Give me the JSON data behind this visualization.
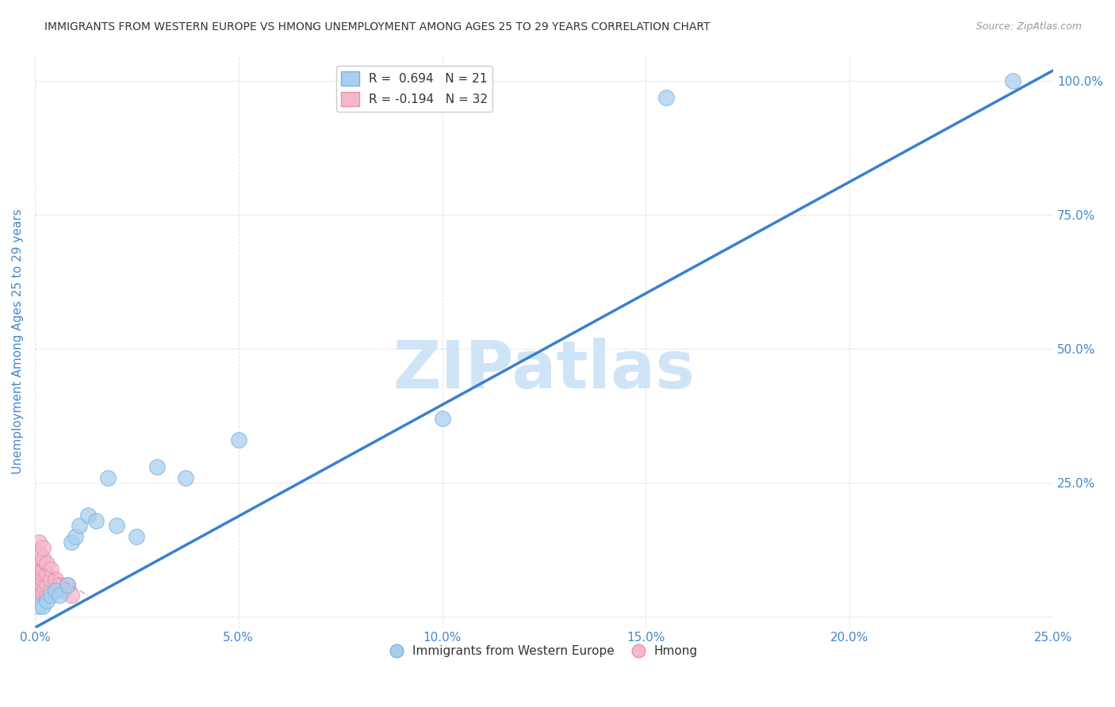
{
  "title": "IMMIGRANTS FROM WESTERN EUROPE VS HMONG UNEMPLOYMENT AMONG AGES 25 TO 29 YEARS CORRELATION CHART",
  "source": "Source: ZipAtlas.com",
  "ylabel": "Unemployment Among Ages 25 to 29 years",
  "legend_bottom": [
    "Immigrants from Western Europe",
    "Hmong"
  ],
  "blue_R": 0.694,
  "blue_N": 21,
  "pink_R": -0.194,
  "pink_N": 32,
  "xlim": [
    0.0,
    0.25
  ],
  "ylim": [
    -0.02,
    1.05
  ],
  "xticks": [
    0.0,
    0.05,
    0.1,
    0.15,
    0.2,
    0.25
  ],
  "yticks": [
    0.0,
    0.25,
    0.5,
    0.75,
    1.0
  ],
  "xticklabels": [
    "0.0%",
    "5.0%",
    "10.0%",
    "15.0%",
    "20.0%",
    "25.0%"
  ],
  "right_yticklabels": [
    "",
    "25.0%",
    "50.0%",
    "75.0%",
    "100.0%"
  ],
  "blue_scatter_x": [
    0.001,
    0.002,
    0.003,
    0.004,
    0.005,
    0.006,
    0.008,
    0.009,
    0.01,
    0.011,
    0.013,
    0.015,
    0.018,
    0.02,
    0.025,
    0.03,
    0.037,
    0.05,
    0.1,
    0.155,
    0.24
  ],
  "blue_scatter_y": [
    0.02,
    0.02,
    0.03,
    0.04,
    0.05,
    0.04,
    0.06,
    0.14,
    0.15,
    0.17,
    0.19,
    0.18,
    0.26,
    0.17,
    0.15,
    0.28,
    0.26,
    0.33,
    0.37,
    0.97,
    1.0
  ],
  "pink_scatter_x": [
    0.0,
    0.0,
    0.0,
    0.001,
    0.001,
    0.001,
    0.001,
    0.001,
    0.001,
    0.001,
    0.001,
    0.002,
    0.002,
    0.002,
    0.002,
    0.002,
    0.002,
    0.002,
    0.002,
    0.003,
    0.003,
    0.003,
    0.003,
    0.004,
    0.004,
    0.004,
    0.005,
    0.005,
    0.006,
    0.007,
    0.008,
    0.009
  ],
  "pink_scatter_y": [
    0.06,
    0.08,
    0.1,
    0.04,
    0.05,
    0.06,
    0.07,
    0.08,
    0.1,
    0.12,
    0.14,
    0.04,
    0.05,
    0.06,
    0.07,
    0.08,
    0.09,
    0.11,
    0.13,
    0.04,
    0.06,
    0.08,
    0.1,
    0.05,
    0.07,
    0.09,
    0.05,
    0.07,
    0.06,
    0.05,
    0.06,
    0.04
  ],
  "blue_color": "#a8cff0",
  "blue_edge_color": "#7ab0e0",
  "pink_color": "#f4b8cc",
  "pink_edge_color": "#e890aa",
  "blue_line_color": "#3a7fd0",
  "pink_line_color": "#e890aa",
  "watermark_text": "ZIPatlas",
  "watermark_color": "#d0e4f8",
  "title_color": "#333333",
  "axis_label_color": "#4488cc",
  "tick_color": "#4488cc",
  "grid_color": "#cccccc",
  "blue_line_x0": 0.0,
  "blue_line_y0": -0.02,
  "blue_line_x1": 0.25,
  "blue_line_y1": 1.02,
  "pink_line_x0": 0.0,
  "pink_line_y0": 0.1,
  "pink_line_x1": 0.013,
  "pink_line_y1": 0.04
}
